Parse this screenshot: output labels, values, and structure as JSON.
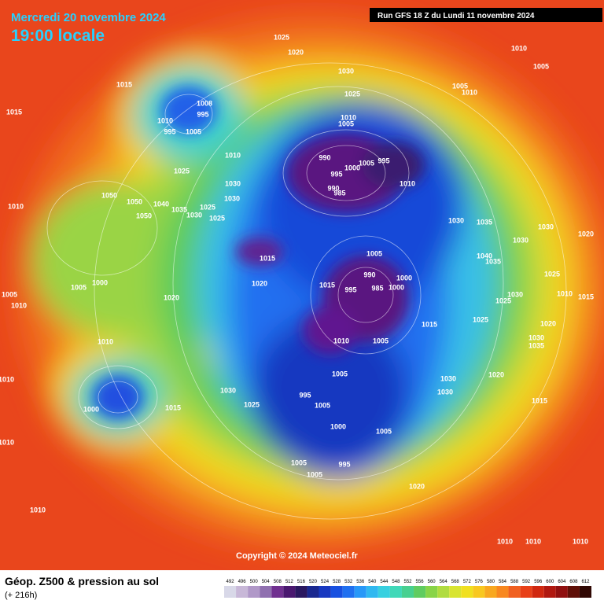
{
  "header": {
    "date": "Mercredi 20 novembre 2024",
    "time": "19:00 locale",
    "run": "Run GFS 18 Z du Lundi 11 novembre 2024"
  },
  "copyright": "Copyright © 2024 Meteociel.fr",
  "footer": {
    "title": "Géop. Z500 & pression au sol",
    "lead": "(+ 216h)"
  },
  "scale": {
    "values": [
      492,
      496,
      500,
      504,
      508,
      512,
      516,
      520,
      524,
      528,
      532,
      536,
      540,
      544,
      548,
      552,
      556,
      560,
      564,
      568,
      572,
      576,
      580,
      584,
      588,
      592,
      596,
      600,
      604,
      608,
      612
    ],
    "colors": [
      "#d8d8e8",
      "#c8b8d8",
      "#b098c8",
      "#9070b0",
      "#703090",
      "#4a1870",
      "#2a1860",
      "#1a2890",
      "#1838c0",
      "#1850e0",
      "#2070f0",
      "#2898f8",
      "#30b8f0",
      "#38d0e0",
      "#40d8b8",
      "#48d090",
      "#60cc60",
      "#88d448",
      "#b0dc40",
      "#d8e430",
      "#f0e020",
      "#f8c820",
      "#f8a820",
      "#f88820",
      "#f06020",
      "#e84018",
      "#d02810",
      "#b01810",
      "#901010",
      "#601008",
      "#300804"
    ]
  },
  "pressure_labels": [
    1025,
    1020,
    1010,
    1005,
    1015,
    1030,
    1025,
    1005,
    1010,
    1015,
    1008,
    995,
    1010,
    995,
    1005,
    1010,
    1005,
    990,
    1000,
    995,
    995,
    1005,
    990,
    985,
    1010,
    1010,
    1025,
    1030,
    1050,
    1050,
    1050,
    1040,
    1035,
    1025,
    1030,
    1025,
    1030,
    1010,
    1030,
    1035,
    1030,
    1030,
    1020,
    1015,
    1005,
    1040,
    1035,
    1025,
    1020,
    990,
    1015,
    1000,
    995,
    985,
    1000,
    1030,
    1025,
    1010,
    1015,
    1000,
    1005,
    1005,
    1010,
    1020,
    1015,
    1025,
    1020,
    1010,
    1005,
    1030,
    1035,
    1010,
    1010,
    1005,
    1030,
    1020,
    1030,
    995,
    1025,
    1005,
    1030,
    1015,
    1000,
    1015,
    1000,
    1005,
    1010,
    1005,
    995,
    1005,
    1020,
    1010,
    1010,
    1010,
    1010
  ]
}
